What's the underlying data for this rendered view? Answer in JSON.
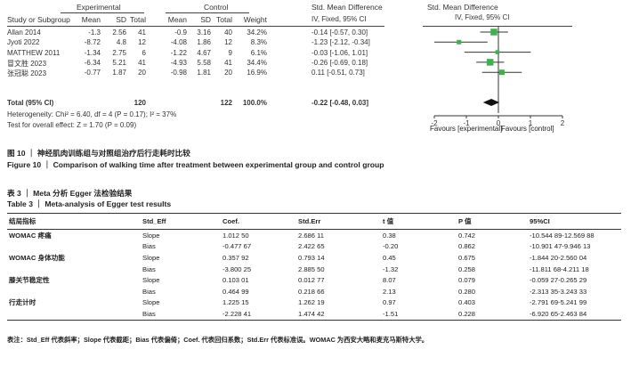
{
  "forest": {
    "group1": "Experimental",
    "group2": "Control",
    "smd_header": "Std. Mean Difference",
    "smd_sub": "IV, Fixed, 95% CI",
    "plot_header": "Std. Mean Difference",
    "plot_sub": "IV, Fixed, 95% CI",
    "columns": [
      "Study or Subgroup",
      "Mean",
      "SD",
      "Total",
      "Mean",
      "SD",
      "Total",
      "Weight"
    ],
    "studies": [
      {
        "name": "Allan 2014",
        "m1": "-1.3",
        "sd1": "2.56",
        "n1": "41",
        "m2": "-0.9",
        "sd2": "3.16",
        "n2": "40",
        "w": "34.2%",
        "ci": "-0.14 [-0.57, 0.30]"
      },
      {
        "name": "Jyoti 2022",
        "m1": "-8.72",
        "sd1": "4.8",
        "n1": "12",
        "m2": "-4.08",
        "sd2": "1.86",
        "n2": "12",
        "w": "8.3%",
        "ci": "-1.23 [-2.12, -0.34]"
      },
      {
        "name": "MATTHEW 2011",
        "m1": "-1.34",
        "sd1": "2.75",
        "n1": "6",
        "m2": "-1.22",
        "sd2": "4.67",
        "n2": "9",
        "w": "6.1%",
        "ci": "-0.03 [-1.06, 1.01]"
      },
      {
        "name": "冒文胜 2023",
        "m1": "-6.34",
        "sd1": "5.21",
        "n1": "41",
        "m2": "-4.93",
        "sd2": "5.58",
        "n2": "41",
        "w": "34.4%",
        "ci": "-0.26 [-0.69, 0.18]"
      },
      {
        "name": "张冠聪 2023",
        "m1": "-0.77",
        "sd1": "1.87",
        "n1": "20",
        "m2": "-0.98",
        "sd2": "1.81",
        "n2": "20",
        "w": "16.9%",
        "ci": "0.11 [-0.51, 0.73]"
      }
    ],
    "total_label": "Total (95% CI)",
    "total_n1": "120",
    "total_n2": "122",
    "total_w": "100.0%",
    "total_ci": "-0.22 [-0.48, 0.03]",
    "heterogeneity": "Heterogeneity: Chi² = 6.40, df = 4 (P = 0.17); I² = 37%",
    "overall": "Test for overall effect: Z = 1.70 (P = 0.09)",
    "axis_ticks": [
      "-2",
      "-1",
      "0",
      "1",
      "2"
    ],
    "favours_left": "Favours [experimental]",
    "favours_right": "Favours [control]"
  },
  "chart_data": {
    "type": "forest",
    "x": [
      -0.14,
      -1.23,
      -0.03,
      -0.26,
      0.11
    ],
    "ci_low": [
      -0.57,
      -2.12,
      -1.06,
      -0.69,
      -0.51
    ],
    "ci_high": [
      0.3,
      -0.34,
      1.01,
      0.18,
      0.73
    ],
    "weights": [
      34.2,
      8.3,
      6.1,
      34.4,
      16.9
    ],
    "pooled": {
      "x": -0.22,
      "low": -0.48,
      "high": 0.03
    },
    "xlim": [
      -2,
      2
    ],
    "marker_color": "#3cb34a"
  },
  "fig_caption_cn": "图 10 ｜ 神经肌肉训练组与对照组治疗后行走耗时比较",
  "fig_caption_en": "Figure 10 ｜ Comparison of walking time after treatment between experimental group and control group",
  "table_title_cn": "表 3 ｜ Meta 分析 Egger 法检验结果",
  "table_title_en": "Table 3 ｜ Meta-analysis of Egger test results",
  "table": {
    "headers": [
      "结局指标",
      "Std_Eff",
      "Coef.",
      "Std.Err",
      "t 值",
      "P 值",
      "95%CI"
    ],
    "rows": [
      [
        "WOMAC 疼痛",
        "Slope",
        "1.012 50",
        "2.686 11",
        "0.38",
        "0.742",
        "-10.544 89-12.569 88"
      ],
      [
        "",
        "Bias",
        "-0.477 67",
        "2.422 65",
        "-0.20",
        "0.862",
        "-10.901 47-9.946 13"
      ],
      [
        "WOMAC 身体功能",
        "Slope",
        "0.357 92",
        "0.793 14",
        "0.45",
        "0.675",
        "-1.844 20-2.560 04"
      ],
      [
        "",
        "Bias",
        "-3.800 25",
        "2.885 50",
        "-1.32",
        "0.258",
        "-11.811 68-4.211 18"
      ],
      [
        "膝关节稳定性",
        "Slope",
        "0.103 01",
        "0.012 77",
        "8.07",
        "0.079",
        "-0.059 27-0.265 29"
      ],
      [
        "",
        "Bias",
        "0.464 99",
        "0.218 66",
        "2.13",
        "0.280",
        "-2.313 35-3.243 33"
      ],
      [
        "行走计时",
        "Slope",
        "1.225 15",
        "1.262 19",
        "0.97",
        "0.403",
        "-2.791 69-5.241 99"
      ],
      [
        "",
        "Bias",
        "-2.228 41",
        "1.474 42",
        "-1.51",
        "0.228",
        "-6.920 65-2.463 84"
      ]
    ]
  },
  "table_note": "表注：Std_Eff 代表斜率；Slope 代表截距；Bias 代表偏倚；Coef. 代表回归系数；Std.Err 代表标准误。WOMAC 为西安大略和麦克马斯特大学。"
}
